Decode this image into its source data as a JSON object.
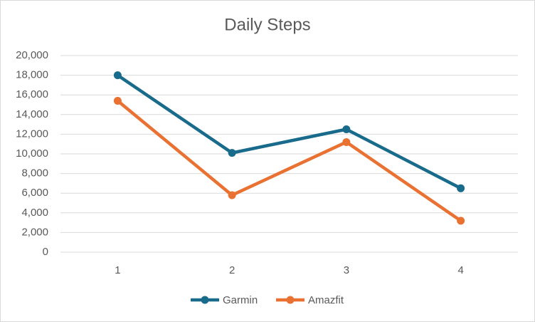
{
  "chart_data": {
    "type": "line",
    "title": "Daily Steps",
    "categories": [
      "1",
      "2",
      "3",
      "4"
    ],
    "series": [
      {
        "name": "Garmin",
        "color": "#196b8c",
        "values": [
          18000,
          10100,
          12500,
          6500
        ]
      },
      {
        "name": "Amazfit",
        "color": "#e97132",
        "values": [
          15400,
          5800,
          11200,
          3200
        ]
      }
    ],
    "ylim": [
      0,
      20000
    ],
    "yticks": [
      0,
      {
        "value": 2000,
        "label": "2,000"
      },
      {
        "value": 4000,
        "label": "4,000"
      },
      {
        "value": 6000,
        "label": "6,000"
      },
      {
        "value": 8000,
        "label": "8,000"
      },
      {
        "value": 10000,
        "label": "10,000"
      },
      {
        "value": 12000,
        "label": "12,000"
      },
      {
        "value": 14000,
        "label": "14,000"
      },
      {
        "value": 16000,
        "label": "16,000"
      },
      {
        "value": 18000,
        "label": "18,000"
      },
      {
        "value": 20000,
        "label": "20,000"
      }
    ],
    "grid": true,
    "legend": "bottom"
  }
}
